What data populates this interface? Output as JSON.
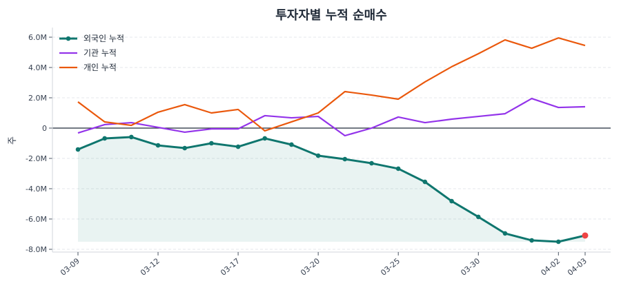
{
  "chart_data": {
    "type": "line",
    "title": "투자자별 누적 순매수",
    "xlabel": "",
    "ylabel": "주",
    "ylim": [
      -8.2,
      6.6
    ],
    "yticks": [
      -8,
      -6,
      -4,
      -2,
      0,
      2,
      4,
      6
    ],
    "ytick_labels": [
      "-8.0M",
      "-6.0M",
      "-4.0M",
      "-2.0M",
      "0",
      "2.0M",
      "4.0M",
      "6.0M"
    ],
    "x": [
      "03-09",
      "03-10",
      "03-11",
      "03-12",
      "03-13",
      "03-16",
      "03-17",
      "03-18",
      "03-19",
      "03-20",
      "03-23",
      "03-24",
      "03-25",
      "03-26",
      "03-27",
      "03-30",
      "03-31",
      "04-01",
      "04-02",
      "04-03"
    ],
    "xticks": [
      "03-09",
      "03-12",
      "03-17",
      "03-20",
      "03-25",
      "03-30",
      "04-02",
      "04-03"
    ],
    "grid": "horizontal dashed",
    "legend": "top-left",
    "unit": "M",
    "series": [
      {
        "name": "외국인 누적",
        "color": "#0f766e",
        "markers": true,
        "fill": true,
        "last_marker_color": "#ef4444",
        "values": [
          -1.41,
          -0.68,
          -0.59,
          -1.14,
          -1.32,
          -1.0,
          -1.23,
          -0.68,
          -1.09,
          -1.82,
          -2.05,
          -2.32,
          -2.68,
          -3.55,
          -4.82,
          -5.86,
          -6.95,
          -7.41,
          -7.5,
          -7.09
        ]
      },
      {
        "name": "기관 누적",
        "color": "#9333ea",
        "markers": false,
        "values": [
          -0.32,
          0.23,
          0.36,
          0.05,
          -0.27,
          -0.05,
          -0.05,
          0.82,
          0.68,
          0.77,
          -0.5,
          0.0,
          0.73,
          0.36,
          0.59,
          0.77,
          0.95,
          1.95,
          1.36,
          1.41
        ]
      },
      {
        "name": "개인 누적",
        "color": "#ea580c",
        "markers": false,
        "values": [
          1.73,
          0.41,
          0.18,
          1.05,
          1.55,
          1.0,
          1.23,
          -0.18,
          0.41,
          1.0,
          2.41,
          2.18,
          1.91,
          3.05,
          4.05,
          4.91,
          5.82,
          5.27,
          5.95,
          5.45
        ]
      }
    ]
  }
}
